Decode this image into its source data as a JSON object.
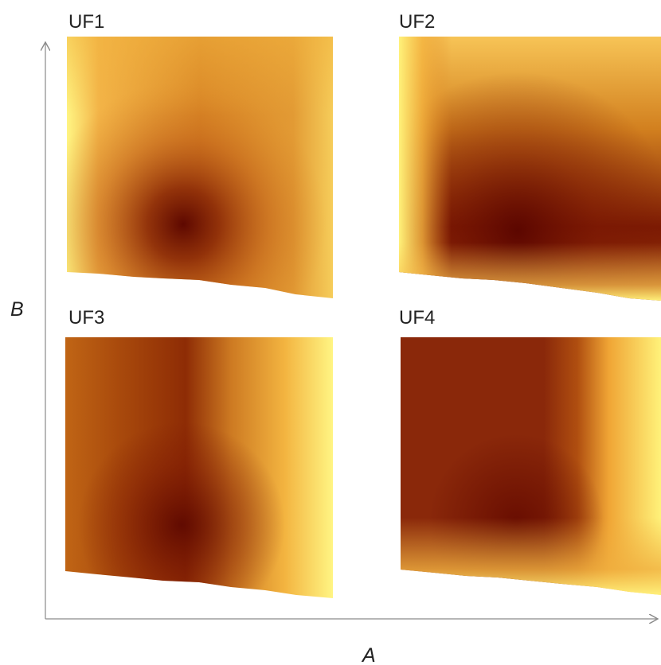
{
  "chart_data": {
    "type": "heatmap",
    "xlabel": "A",
    "ylabel": "B",
    "colormap": [
      "#fff583",
      "#fbbd43",
      "#e07a1f",
      "#a43f09",
      "#6a0a00"
    ],
    "panels": [
      {
        "title": "UF1",
        "pattern": "minimum near lower-left center, fading outward"
      },
      {
        "title": "UF2",
        "pattern": "dark band along bottom with bright left edge"
      },
      {
        "title": "UF3",
        "pattern": "dark vertical band left of center, bright right edge"
      },
      {
        "title": "UF4",
        "pattern": "dark left region, bright right region"
      }
    ]
  }
}
